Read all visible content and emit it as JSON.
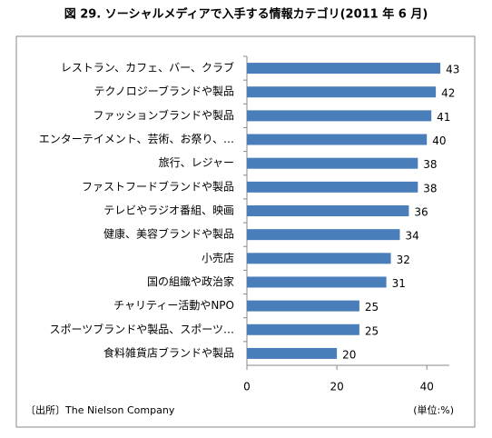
{
  "chart_data": {
    "type": "bar",
    "orientation": "horizontal",
    "title": "図 29. ソーシャルメディアで入手する情報カテゴリ(2011 年 6 月)",
    "categories": [
      "レストラン、カフェ、バー、クラブ",
      "テクノロジーブランドや製品",
      "ファッションブランドや製品",
      "エンターテイメント、芸術、お祭り、…",
      "旅行、レジャー",
      "ファストフードブランドや製品",
      "テレビやラジオ番組、映画",
      "健康、美容ブランドや製品",
      "小売店",
      "国の組織や政治家",
      "チャリティー活動やNPO",
      "スポーツブランドや製品、スポーツ…",
      "食料雑貨店ブランドや製品"
    ],
    "values": [
      43,
      42,
      41,
      40,
      38,
      38,
      36,
      34,
      32,
      31,
      25,
      25,
      20
    ],
    "color": "#4a7ebb",
    "xlim": [
      0,
      45
    ],
    "xticks": [
      0,
      20,
      40
    ],
    "source": "〔出所〕The Nielson Company",
    "unit_note": "(単位:%)"
  }
}
